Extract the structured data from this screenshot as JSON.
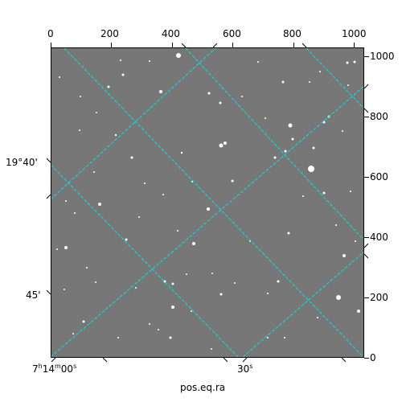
{
  "axes": {
    "xlabel": "pos.eq.ra",
    "pixel_ticks_x": [
      "0",
      "200",
      "400",
      "600",
      "800",
      "1000"
    ],
    "pixel_ticks_y": [
      "0",
      "200",
      "400",
      "600",
      "800",
      "1000"
    ],
    "world_ticks_bottom": [
      {
        "h": "7",
        "hs": "h",
        "m": "14",
        "ms": "m",
        "s": "00",
        "ss": "s"
      },
      {
        "s": "30",
        "ss": "s"
      }
    ],
    "world_ticks_left": [
      "19°40'",
      "45'"
    ]
  },
  "colors": {
    "background": "#ffffff",
    "image_gray": "#777777",
    "grid": "#00e5e5"
  }
}
